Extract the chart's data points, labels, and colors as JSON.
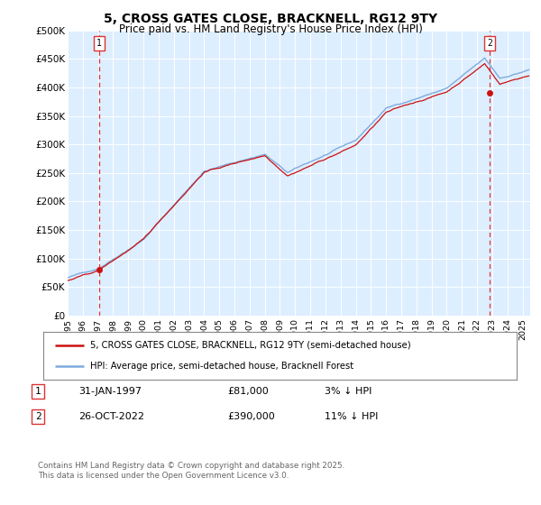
{
  "title": "5, CROSS GATES CLOSE, BRACKNELL, RG12 9TY",
  "subtitle": "Price paid vs. HM Land Registry's House Price Index (HPI)",
  "ylim": [
    0,
    500000
  ],
  "yticks": [
    0,
    50000,
    100000,
    150000,
    200000,
    250000,
    300000,
    350000,
    400000,
    450000,
    500000
  ],
  "ytick_labels": [
    "£0",
    "£50K",
    "£100K",
    "£150K",
    "£200K",
    "£250K",
    "£300K",
    "£350K",
    "£400K",
    "£450K",
    "£500K"
  ],
  "bg_color": "#ffffff",
  "plot_bg_color": "#ddeeff",
  "grid_color": "#ffffff",
  "hpi_color": "#7faadd",
  "price_color": "#cc1111",
  "dashed_line_color": "#dd3333",
  "legend_label_price": "5, CROSS GATES CLOSE, BRACKNELL, RG12 9TY (semi-detached house)",
  "legend_label_hpi": "HPI: Average price, semi-detached house, Bracknell Forest",
  "annotation1_date": "31-JAN-1997",
  "annotation1_price": "£81,000",
  "annotation1_hpi": "3% ↓ HPI",
  "annotation2_date": "26-OCT-2022",
  "annotation2_price": "£390,000",
  "annotation2_hpi": "11% ↓ HPI",
  "footnote": "Contains HM Land Registry data © Crown copyright and database right 2025.\nThis data is licensed under the Open Government Licence v3.0.",
  "sale1_year": 1997.08,
  "sale1_value": 81000,
  "sale2_year": 2022.82,
  "sale2_value": 390000
}
